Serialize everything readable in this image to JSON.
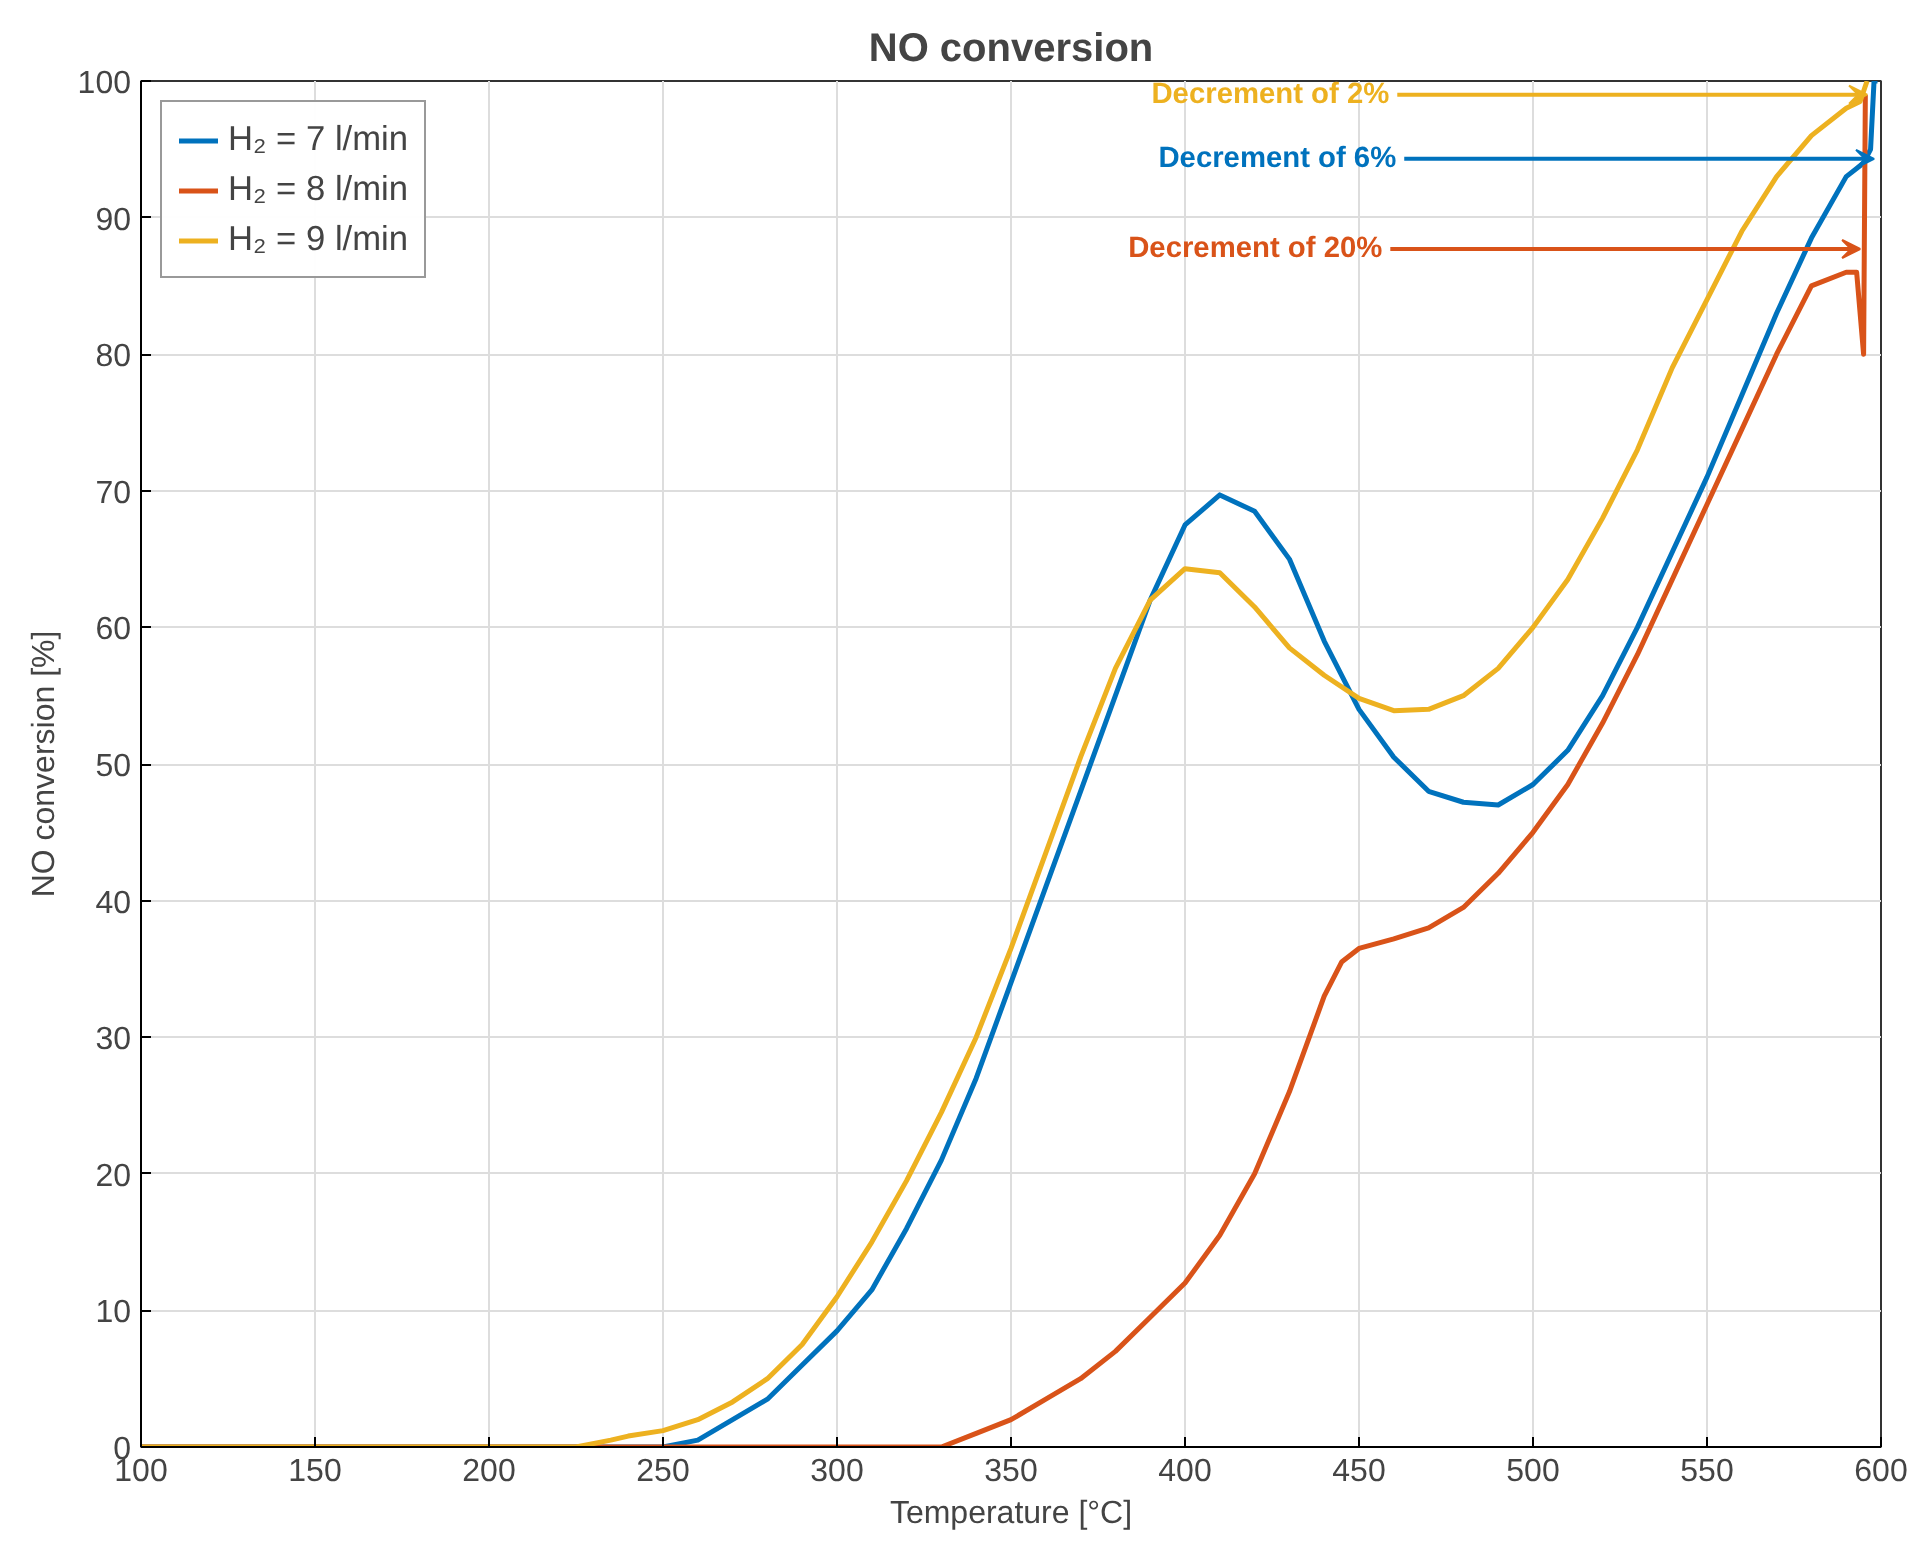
{
  "chart_data": {
    "type": "line",
    "title": "NO conversion",
    "xlabel": "Temperature [°C]",
    "ylabel": "NO conversion [%]",
    "xlim": [
      100,
      600
    ],
    "ylim": [
      0,
      100
    ],
    "xticks": [
      100,
      150,
      200,
      250,
      300,
      350,
      400,
      450,
      500,
      550,
      600
    ],
    "yticks": [
      0,
      10,
      20,
      30,
      40,
      50,
      60,
      70,
      80,
      90,
      100
    ],
    "grid": true,
    "legend": "top left",
    "line_style": "solid",
    "series": [
      {
        "name": "H₂ = 7 l/min",
        "color": "#0072bd",
        "x": [
          100,
          250,
          260,
          270,
          280,
          290,
          300,
          310,
          320,
          330,
          340,
          350,
          360,
          370,
          380,
          390,
          400,
          410,
          420,
          430,
          440,
          450,
          460,
          470,
          480,
          490,
          500,
          510,
          520,
          530,
          540,
          550,
          560,
          570,
          580,
          590,
          595,
          597,
          598,
          599
        ],
        "values": [
          0,
          0,
          0.5,
          2,
          3.5,
          6,
          8.5,
          11.5,
          16,
          21,
          27,
          34,
          41,
          48,
          55,
          62,
          67.5,
          69.7,
          68.5,
          65,
          59,
          54,
          50.5,
          48,
          47.2,
          47,
          48.5,
          51,
          55,
          60,
          65.5,
          71,
          77,
          83,
          88.5,
          93,
          94,
          95,
          100,
          100
        ]
      },
      {
        "name": "H₂ = 8 l/min",
        "color": "#d95319",
        "x": [
          100,
          330,
          340,
          350,
          360,
          370,
          380,
          390,
          400,
          410,
          420,
          430,
          440,
          445,
          450,
          460,
          470,
          480,
          490,
          500,
          510,
          520,
          530,
          540,
          550,
          560,
          570,
          580,
          590,
          593,
          595,
          595.5
        ],
        "values": [
          0,
          0,
          1,
          2,
          3.5,
          5,
          7,
          9.5,
          12,
          15.5,
          20,
          26,
          33,
          35.5,
          36.5,
          37.2,
          38,
          39.5,
          42,
          45,
          48.5,
          53,
          58,
          63.5,
          69,
          74.5,
          80,
          85,
          86,
          86,
          80,
          99
        ]
      },
      {
        "name": "H₂ = 9 l/min",
        "color": "#edb120",
        "x": [
          100,
          225,
          235,
          240,
          250,
          260,
          270,
          280,
          290,
          300,
          310,
          320,
          330,
          340,
          350,
          360,
          370,
          380,
          390,
          400,
          410,
          420,
          430,
          440,
          450,
          460,
          470,
          480,
          490,
          500,
          510,
          520,
          530,
          540,
          550,
          560,
          570,
          580,
          590,
          594,
          596
        ],
        "values": [
          0,
          0,
          0.5,
          0.8,
          1.2,
          2,
          3.3,
          5,
          7.5,
          11,
          15,
          19.5,
          24.5,
          30,
          36.5,
          43.5,
          50.5,
          57,
          62,
          64.3,
          64,
          61.5,
          58.5,
          56.5,
          54.8,
          53.9,
          54,
          55,
          57,
          60,
          63.5,
          68,
          73,
          79,
          84,
          89,
          93,
          96,
          98,
          98.5,
          100
        ]
      }
    ],
    "annotations": [
      {
        "text": "Decrement of 6%",
        "x": 598,
        "y": 94.3
      },
      {
        "text": "Decrement of 20%",
        "x": 594,
        "y": 87.7
      },
      {
        "text": "Decrement of 2%",
        "x": 596,
        "y": 99
      }
    ]
  }
}
